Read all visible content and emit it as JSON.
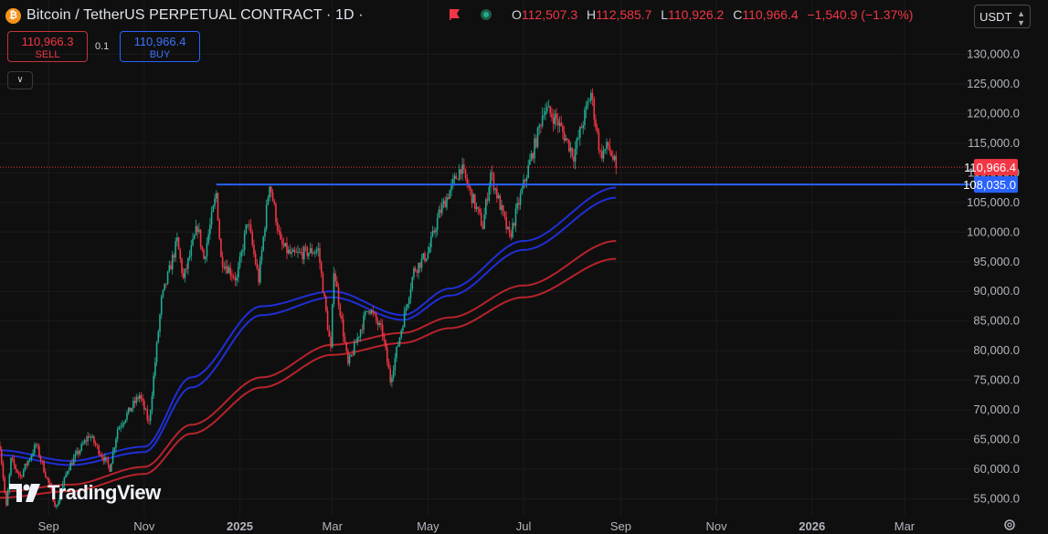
{
  "header": {
    "coin_icon": "bitcoin-coin-icon",
    "title": "Bitcoin / TetherUS PERPETUAL CONTRACT · 1D ·",
    "ohlc": {
      "o_label": "O",
      "o": "112,507.3",
      "h_label": "H",
      "h": "112,585.7",
      "l_label": "L",
      "l": "110,926.2",
      "c_label": "C",
      "c": "110,966.4",
      "change": "−1,540.9 (−1.37%)"
    },
    "currency": "USDT"
  },
  "trade": {
    "sell_price": "110,966.3",
    "sell_label": "SELL",
    "spread": "0.1",
    "buy_price": "110,966.4",
    "buy_label": "BUY"
  },
  "logo_text": "TradingView",
  "colors": {
    "up": "#22ab94",
    "down": "#f23645",
    "blue_band": "#1f2fd6",
    "red_band": "#b8232b",
    "level_line": "#2962ff",
    "price_line": "#f23645"
  },
  "chart_data": {
    "type": "candlestick",
    "y_axis": {
      "range": [
        52000,
        133000
      ],
      "ticks": [
        "130,000.0",
        "125,000.0",
        "120,000.0",
        "115,000.0",
        "110,000.0",
        "105,000.0",
        "100,000.0",
        "95,000.0",
        "90,000.0",
        "85,000.0",
        "80,000.0",
        "75,000.0",
        "70,000.0",
        "65,000.0",
        "60,000.0",
        "55,000.0"
      ]
    },
    "x_axis": {
      "range": [
        "2024-08-01",
        "2026-04-12"
      ],
      "ticks": [
        {
          "date": "2024-09-01",
          "label": "Sep"
        },
        {
          "date": "2024-11-01",
          "label": "Nov"
        },
        {
          "date": "2025-01-01",
          "label": "2025"
        },
        {
          "date": "2025-03-01",
          "label": "Mar"
        },
        {
          "date": "2025-05-01",
          "label": "May"
        },
        {
          "date": "2025-07-01",
          "label": "Jul"
        },
        {
          "date": "2025-09-01",
          "label": "Sep"
        },
        {
          "date": "2025-11-01",
          "label": "Nov"
        },
        {
          "date": "2026-01-01",
          "label": "2026"
        },
        {
          "date": "2026-03-01",
          "label": "Mar"
        }
      ]
    },
    "price_path": [
      [
        "2024-08-01",
        64000
      ],
      [
        "2024-08-05",
        53500
      ],
      [
        "2024-08-08",
        61500
      ],
      [
        "2024-08-14",
        58800
      ],
      [
        "2024-08-24",
        64100
      ],
      [
        "2024-09-06",
        53500
      ],
      [
        "2024-09-13",
        60000
      ],
      [
        "2024-09-27",
        65800
      ],
      [
        "2024-10-10",
        60200
      ],
      [
        "2024-10-15",
        66800
      ],
      [
        "2024-10-29",
        72500
      ],
      [
        "2024-11-04",
        67800
      ],
      [
        "2024-11-12",
        88500
      ],
      [
        "2024-11-22",
        98500
      ],
      [
        "2024-11-26",
        92000
      ],
      [
        "2024-12-05",
        101000
      ],
      [
        "2024-12-09",
        95500
      ],
      [
        "2024-12-17",
        106500
      ],
      [
        "2024-12-20",
        95500
      ],
      [
        "2024-12-30",
        92000
      ],
      [
        "2025-01-06",
        102000
      ],
      [
        "2025-01-13",
        92000
      ],
      [
        "2025-01-20",
        108500
      ],
      [
        "2025-01-27",
        98000
      ],
      [
        "2025-02-03",
        96000
      ],
      [
        "2025-02-20",
        97000
      ],
      [
        "2025-02-28",
        80000
      ],
      [
        "2025-03-02",
        94000
      ],
      [
        "2025-03-11",
        77500
      ],
      [
        "2025-03-24",
        87500
      ],
      [
        "2025-04-02",
        83000
      ],
      [
        "2025-04-07",
        75000
      ],
      [
        "2025-04-22",
        93500
      ],
      [
        "2025-05-01",
        96500
      ],
      [
        "2025-05-08",
        103000
      ],
      [
        "2025-05-22",
        111000
      ],
      [
        "2025-06-05",
        101000
      ],
      [
        "2025-06-10",
        110000
      ],
      [
        "2025-06-22",
        99000
      ],
      [
        "2025-06-30",
        107000
      ],
      [
        "2025-07-10",
        116500
      ],
      [
        "2025-07-14",
        121000
      ],
      [
        "2025-07-22",
        119000
      ],
      [
        "2025-08-02",
        113000
      ],
      [
        "2025-08-13",
        123500
      ],
      [
        "2025-08-19",
        113000
      ],
      [
        "2025-08-24",
        114500
      ],
      [
        "2025-08-29",
        110966.4
      ]
    ],
    "moving_average_bands": [
      {
        "color": "blue",
        "values": [
          [
            "2024-08-01",
            63200
          ],
          [
            "2024-09-15",
            61400
          ],
          [
            "2024-11-01",
            63800
          ],
          [
            "2024-12-01",
            75500
          ],
          [
            "2025-01-15",
            87500
          ],
          [
            "2025-03-01",
            90000
          ],
          [
            "2025-04-15",
            86000
          ],
          [
            "2025-05-15",
            90500
          ],
          [
            "2025-07-01",
            98500
          ],
          [
            "2025-08-29",
            107500
          ]
        ]
      },
      {
        "color": "blue",
        "values": [
          [
            "2024-08-01",
            62400
          ],
          [
            "2024-09-15",
            60700
          ],
          [
            "2024-11-01",
            62900
          ],
          [
            "2024-12-01",
            73800
          ],
          [
            "2025-01-15",
            86000
          ],
          [
            "2025-03-01",
            89000
          ],
          [
            "2025-04-15",
            85200
          ],
          [
            "2025-05-15",
            89300
          ],
          [
            "2025-07-01",
            97000
          ],
          [
            "2025-08-29",
            105800
          ]
        ]
      },
      {
        "color": "red",
        "values": [
          [
            "2024-08-01",
            56200
          ],
          [
            "2024-09-15",
            57400
          ],
          [
            "2024-11-01",
            60400
          ],
          [
            "2024-12-01",
            67500
          ],
          [
            "2025-01-15",
            75500
          ],
          [
            "2025-03-01",
            81000
          ],
          [
            "2025-04-15",
            83000
          ],
          [
            "2025-05-15",
            85600
          ],
          [
            "2025-07-01",
            91000
          ],
          [
            "2025-08-29",
            98500
          ]
        ]
      },
      {
        "color": "red",
        "values": [
          [
            "2024-08-01",
            55200
          ],
          [
            "2024-09-15",
            56300
          ],
          [
            "2024-11-01",
            59200
          ],
          [
            "2024-12-01",
            66000
          ],
          [
            "2025-01-15",
            73800
          ],
          [
            "2025-03-01",
            79300
          ],
          [
            "2025-04-15",
            81300
          ],
          [
            "2025-05-15",
            83800
          ],
          [
            "2025-07-01",
            89000
          ],
          [
            "2025-08-29",
            95500
          ]
        ]
      }
    ],
    "horizontal_level": {
      "price": 108035.0,
      "label": "108,035.0",
      "from": "2024-12-17"
    },
    "last_price": {
      "price": 110966.4,
      "label": "110,966.4"
    },
    "grid": true
  }
}
